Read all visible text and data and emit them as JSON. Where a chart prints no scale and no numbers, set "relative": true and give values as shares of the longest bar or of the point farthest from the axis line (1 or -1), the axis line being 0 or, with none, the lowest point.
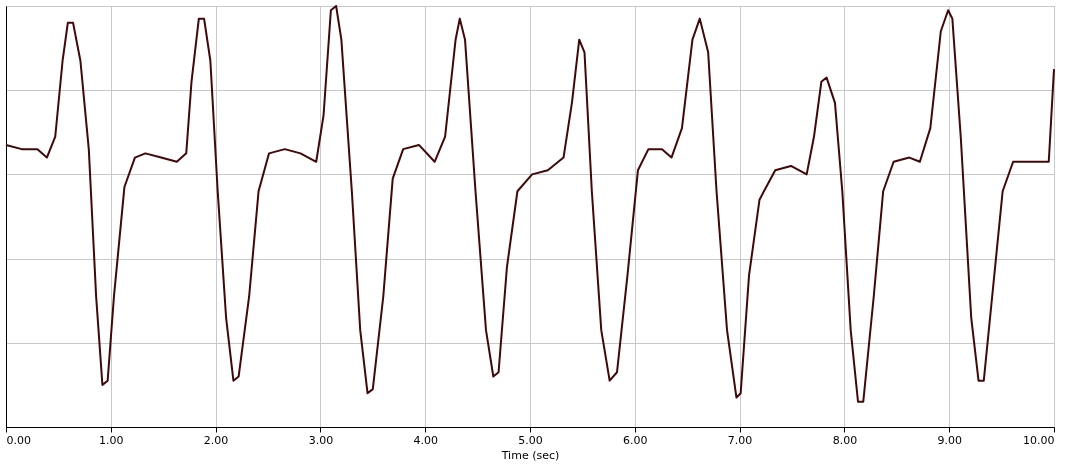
{
  "chart_data": {
    "type": "line",
    "relative": true,
    "xlabel": "Time (sec)",
    "grid": true,
    "line_style": "solid",
    "marker": "none",
    "xlim": [
      0,
      10
    ],
    "xticks": [
      {
        "value": 0,
        "label": "0.00"
      },
      {
        "value": 1,
        "label": "1.00"
      },
      {
        "value": 2,
        "label": "2.00"
      },
      {
        "value": 3,
        "label": "3.00"
      },
      {
        "value": 4,
        "label": "4.00"
      },
      {
        "value": 5,
        "label": "5.00"
      },
      {
        "value": 6,
        "label": "6.00"
      },
      {
        "value": 7,
        "label": "7.00"
      },
      {
        "value": 8,
        "label": "8.00"
      },
      {
        "value": 9,
        "label": "9.00"
      },
      {
        "value": 10,
        "label": "10.00"
      }
    ],
    "series": [
      {
        "color": "#400808",
        "x": [
          0.0,
          0.15,
          0.3,
          0.39,
          0.47,
          0.54,
          0.59,
          0.64,
          0.71,
          0.79,
          0.86,
          0.92,
          0.97,
          1.03,
          1.13,
          1.23,
          1.33,
          1.48,
          1.63,
          1.72,
          1.77,
          1.84,
          1.89,
          1.95,
          2.02,
          2.1,
          2.17,
          2.22,
          2.32,
          2.41,
          2.51,
          2.66,
          2.81,
          2.96,
          3.03,
          3.1,
          3.15,
          3.2,
          3.3,
          3.38,
          3.45,
          3.5,
          3.6,
          3.69,
          3.79,
          3.94,
          4.09,
          4.19,
          4.29,
          4.33,
          4.38,
          4.48,
          4.58,
          4.65,
          4.7,
          4.78,
          4.88,
          5.02,
          5.17,
          5.32,
          5.4,
          5.47,
          5.52,
          5.59,
          5.68,
          5.76,
          5.83,
          5.93,
          6.03,
          6.13,
          6.26,
          6.35,
          6.45,
          6.55,
          6.62,
          6.7,
          6.78,
          6.88,
          6.97,
          7.01,
          7.09,
          7.19,
          7.34,
          7.49,
          7.64,
          7.71,
          7.78,
          7.83,
          7.91,
          7.98,
          8.06,
          8.13,
          8.18,
          8.28,
          8.37,
          8.47,
          8.62,
          8.72,
          8.82,
          8.92,
          8.99,
          9.03,
          9.11,
          9.21,
          9.28,
          9.33,
          9.41,
          9.51,
          9.61,
          9.75,
          9.95,
          10.0
        ],
        "values": [
          0.67,
          0.66,
          0.66,
          0.64,
          0.69,
          0.87,
          0.96,
          0.96,
          0.87,
          0.66,
          0.31,
          0.1,
          0.11,
          0.31,
          0.57,
          0.64,
          0.65,
          0.64,
          0.63,
          0.65,
          0.82,
          0.97,
          0.97,
          0.87,
          0.56,
          0.26,
          0.11,
          0.12,
          0.31,
          0.56,
          0.65,
          0.66,
          0.65,
          0.63,
          0.74,
          0.99,
          1.0,
          0.92,
          0.56,
          0.23,
          0.08,
          0.09,
          0.31,
          0.59,
          0.66,
          0.67,
          0.63,
          0.69,
          0.92,
          0.97,
          0.92,
          0.56,
          0.23,
          0.12,
          0.13,
          0.38,
          0.56,
          0.6,
          0.61,
          0.64,
          0.77,
          0.92,
          0.89,
          0.56,
          0.23,
          0.11,
          0.13,
          0.36,
          0.61,
          0.66,
          0.66,
          0.64,
          0.71,
          0.92,
          0.97,
          0.89,
          0.56,
          0.23,
          0.07,
          0.08,
          0.36,
          0.54,
          0.61,
          0.62,
          0.6,
          0.69,
          0.82,
          0.83,
          0.77,
          0.56,
          0.23,
          0.06,
          0.06,
          0.31,
          0.56,
          0.63,
          0.64,
          0.63,
          0.71,
          0.94,
          0.99,
          0.97,
          0.69,
          0.26,
          0.11,
          0.11,
          0.31,
          0.56,
          0.63,
          0.63,
          0.63,
          0.85
        ]
      }
    ]
  }
}
